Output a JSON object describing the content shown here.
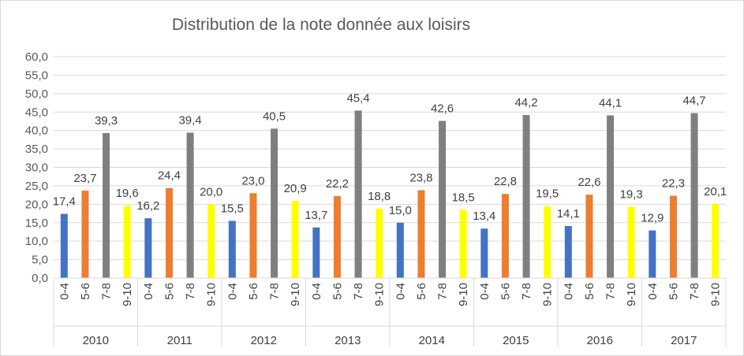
{
  "chart_data": {
    "type": "bar",
    "title": "Distribution de la note donnée aux loisirs",
    "xlabel": "",
    "ylabel": "",
    "ylim": [
      0,
      60
    ],
    "y_ticks": [
      "0,0",
      "5,0",
      "10,0",
      "15,0",
      "20,0",
      "25,0",
      "30,0",
      "35,0",
      "40,0",
      "45,0",
      "50,0",
      "55,0",
      "60,0"
    ],
    "grid": true,
    "legend": "none",
    "groups": [
      "2010",
      "2011",
      "2012",
      "2013",
      "2014",
      "2015",
      "2016",
      "2017"
    ],
    "categories": [
      "0-4",
      "5-6",
      "7-8",
      "9-10"
    ],
    "colors": [
      "#4472c4",
      "#ed7d31",
      "#7f7f7f",
      "#ffff00"
    ],
    "values": [
      [
        17.4,
        23.7,
        39.3,
        19.6
      ],
      [
        16.2,
        24.4,
        39.4,
        20.0
      ],
      [
        15.5,
        23.0,
        40.5,
        20.9
      ],
      [
        13.7,
        22.2,
        45.4,
        18.8
      ],
      [
        15.0,
        23.8,
        42.6,
        18.5
      ],
      [
        13.4,
        22.8,
        44.2,
        19.5
      ],
      [
        14.1,
        22.6,
        44.1,
        19.3
      ],
      [
        12.9,
        22.3,
        44.7,
        20.1
      ]
    ],
    "data_labels": [
      [
        "17,4",
        "23,7",
        "39,3",
        "19,6"
      ],
      [
        "16,2",
        "24,4",
        "39,4",
        "20,0"
      ],
      [
        "15,5",
        "23,0",
        "40,5",
        "20,9"
      ],
      [
        "13,7",
        "22,2",
        "45,4",
        "18,8"
      ],
      [
        "15,0",
        "23,8",
        "42,6",
        "18,5"
      ],
      [
        "13,4",
        "22,8",
        "44,2",
        "19,5"
      ],
      [
        "14,1",
        "22,6",
        "44,1",
        "19,3"
      ],
      [
        "12,9",
        "22,3",
        "44,7",
        "20,1"
      ]
    ]
  }
}
